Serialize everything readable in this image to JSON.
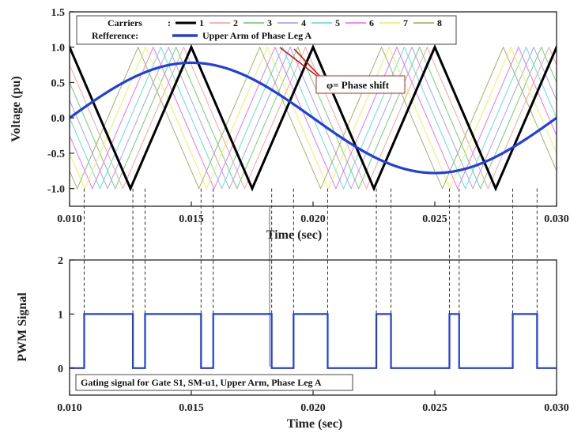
{
  "chart_data": [
    {
      "type": "line",
      "xlabel": "Time (sec)",
      "ylabel": "Voltage (pu)",
      "xlim": [
        0.01,
        0.03
      ],
      "ylim": [
        -1.25,
        1.5
      ],
      "xticks": [
        "0.010",
        "0.015",
        "0.020",
        "0.025",
        "0.030"
      ],
      "yticks": [
        "-1.0",
        "-0.5",
        "0.0",
        "0.5",
        "1.0",
        "1.5"
      ],
      "carrier_frequency_hz": 200,
      "carrier_amplitude": [
        -1.0,
        1.0
      ],
      "legend": {
        "position": "top",
        "carriers_label": "Carriers",
        "reference_label": "Refference:",
        "carriers": [
          {
            "name": "1",
            "color": "#000000"
          },
          {
            "name": "2",
            "color": "#ff9999"
          },
          {
            "name": "3",
            "color": "#66cc66"
          },
          {
            "name": "4",
            "color": "#9999ff"
          },
          {
            "name": "5",
            "color": "#55dddd"
          },
          {
            "name": "6",
            "color": "#ee66ee"
          },
          {
            "name": "7",
            "color": "#eeee55"
          },
          {
            "name": "8",
            "color": "#99aa55"
          }
        ],
        "reference": {
          "name": "Upper Arm of Phase Leg A",
          "color": "#1f3fe0"
        }
      },
      "reference_wave": {
        "amplitude": 0.78,
        "frequency_hz": 50,
        "phase_start_time": 0.01,
        "color": "#1f3fe0"
      },
      "annotation": {
        "text": "φ= Phase shift"
      }
    },
    {
      "type": "line",
      "xlabel": "Time (sec)",
      "ylabel": "PWM Signal",
      "xlim": [
        0.01,
        0.03
      ],
      "ylim": [
        -0.5,
        2
      ],
      "xticks": [
        "0.010",
        "0.015",
        "0.020",
        "0.025",
        "0.030"
      ],
      "yticks": [
        "0",
        "1",
        "2"
      ],
      "color": "#1f3fe0",
      "label_box": "Gating signal for Gate S1, SM-u1, Upper Arm,  Phase Leg A",
      "pulses": [
        [
          0.0106,
          0.0126
        ],
        [
          0.0131,
          0.0154
        ],
        [
          0.0159,
          0.0183
        ],
        [
          0.0192,
          0.0206
        ],
        [
          0.0226,
          0.0232
        ],
        [
          0.0256,
          0.026
        ],
        [
          0.0282,
          0.0292
        ]
      ]
    }
  ]
}
